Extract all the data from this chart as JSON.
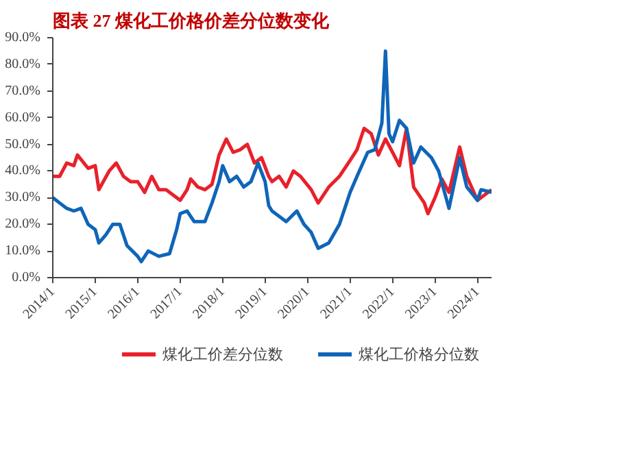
{
  "chart_data": {
    "type": "line",
    "title": "图表 27   煤化工价格价差分位数变化",
    "xlim": [
      "2014-01",
      "2024-05"
    ],
    "xticks": [
      {
        "value": "2014-01",
        "label": "2014/1"
      },
      {
        "value": "2015-01",
        "label": "2015/1"
      },
      {
        "value": "2016-01",
        "label": "2016/1"
      },
      {
        "value": "2017-01",
        "label": "2017/1"
      },
      {
        "value": "2018-01",
        "label": "2018/1"
      },
      {
        "value": "2019-01",
        "label": "2019/1"
      },
      {
        "value": "2020-01",
        "label": "2020/1"
      },
      {
        "value": "2021-01",
        "label": "2021/1"
      },
      {
        "value": "2022-01",
        "label": "2022/1"
      },
      {
        "value": "2023-01",
        "label": "2023/1"
      },
      {
        "value": "2024-01",
        "label": "2024/1"
      }
    ],
    "ylim": [
      0,
      90
    ],
    "yticks": [
      {
        "value": 0,
        "label": "0.0%"
      },
      {
        "value": 10,
        "label": "10.0%"
      },
      {
        "value": 20,
        "label": "20.0%"
      },
      {
        "value": 30,
        "label": "30.0%"
      },
      {
        "value": 40,
        "label": "40.0%"
      },
      {
        "value": 50,
        "label": "50.0%"
      },
      {
        "value": 60,
        "label": "60.0%"
      },
      {
        "value": 70,
        "label": "70.0%"
      },
      {
        "value": 80,
        "label": "80.0%"
      },
      {
        "value": 90,
        "label": "90.0%"
      }
    ],
    "grid": false,
    "legend": "bottom",
    "marker": "none",
    "line_style": "solid",
    "series": [
      {
        "name": "煤化工价差分位数",
        "color": "#e8212b",
        "x": [
          "2014-01",
          "2014-03",
          "2014-05",
          "2014-07",
          "2014-08",
          "2014-11",
          "2015-01",
          "2015-02",
          "2015-05",
          "2015-07",
          "2015-09",
          "2015-11",
          "2016-01",
          "2016-03",
          "2016-05",
          "2016-07",
          "2016-09",
          "2016-11",
          "2017-01",
          "2017-03",
          "2017-04",
          "2017-06",
          "2017-08",
          "2017-10",
          "2017-12",
          "2018-02",
          "2018-04",
          "2018-06",
          "2018-08",
          "2018-10",
          "2018-12",
          "2019-02",
          "2019-03",
          "2019-05",
          "2019-07",
          "2019-09",
          "2019-11",
          "2020-02",
          "2020-04",
          "2020-07",
          "2020-10",
          "2021-01",
          "2021-03",
          "2021-05",
          "2021-07",
          "2021-09",
          "2021-11",
          "2022-01",
          "2022-03",
          "2022-05",
          "2022-07",
          "2022-10",
          "2022-11",
          "2023-01",
          "2023-03",
          "2023-05",
          "2023-08",
          "2023-10",
          "2024-01",
          "2024-05"
        ],
        "values": [
          38,
          38,
          43,
          42,
          46,
          41,
          42,
          33,
          40,
          43,
          38,
          36,
          36,
          32,
          38,
          33,
          33,
          31,
          29,
          33,
          37,
          34,
          33,
          35,
          46,
          52,
          47,
          48,
          50,
          43,
          45,
          38,
          36,
          38,
          34,
          40,
          38,
          33,
          28,
          34,
          38,
          44,
          48,
          56,
          54,
          46,
          52,
          47,
          42,
          56,
          34,
          28,
          24,
          30,
          37,
          32,
          49,
          38,
          29,
          33
        ]
      },
      {
        "name": "煤化工价格分位数",
        "color": "#0f65b8",
        "x": [
          "2014-01",
          "2014-03",
          "2014-05",
          "2014-07",
          "2014-09",
          "2014-11",
          "2015-01",
          "2015-02",
          "2015-04",
          "2015-06",
          "2015-08",
          "2015-10",
          "2016-01",
          "2016-02",
          "2016-04",
          "2016-07",
          "2016-10",
          "2016-12",
          "2017-01",
          "2017-03",
          "2017-05",
          "2017-08",
          "2017-10",
          "2017-12",
          "2018-01",
          "2018-03",
          "2018-05",
          "2018-07",
          "2018-09",
          "2018-11",
          "2019-01",
          "2019-02",
          "2019-03",
          "2019-07",
          "2019-10",
          "2019-12",
          "2020-02",
          "2020-04",
          "2020-07",
          "2020-10",
          "2021-01",
          "2021-03",
          "2021-06",
          "2021-08",
          "2021-10",
          "2021-11",
          "2021-12",
          "2022-01",
          "2022-03",
          "2022-05",
          "2022-07",
          "2022-09",
          "2022-12",
          "2023-02",
          "2023-05",
          "2023-08",
          "2023-10",
          "2024-01",
          "2024-02",
          "2024-05"
        ],
        "values": [
          30,
          28,
          26,
          25,
          26,
          20,
          18,
          13,
          16,
          20,
          20,
          12,
          8,
          6,
          10,
          8,
          9,
          18,
          24,
          25,
          21,
          21,
          28,
          36,
          42,
          36,
          38,
          34,
          36,
          43,
          36,
          27,
          25,
          21,
          25,
          20,
          17,
          11,
          13,
          20,
          32,
          38,
          47,
          48,
          58,
          85,
          54,
          51,
          59,
          56,
          43,
          49,
          45,
          40,
          26,
          45,
          34,
          29,
          33,
          32
        ]
      }
    ]
  }
}
